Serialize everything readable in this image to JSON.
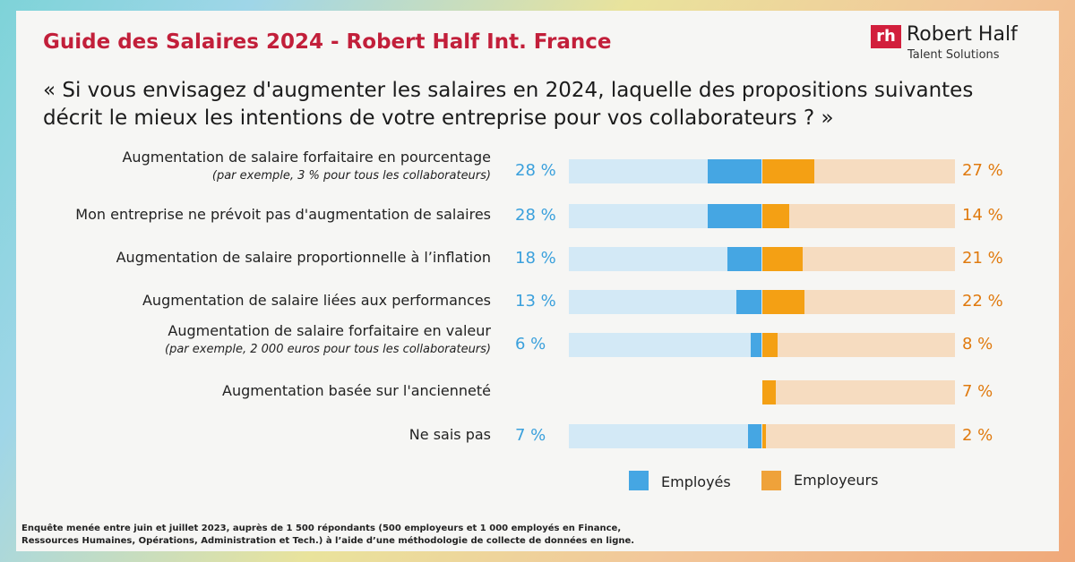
{
  "header": {
    "title": "Guide des Salaires 2024  - Robert Half Int. France",
    "logo_mark": "rh",
    "logo_name": "Robert Half",
    "logo_sub": "Talent Solutions"
  },
  "question": "« Si vous envisagez d'augmenter les salaires en 2024, laquelle des propositions suivantes décrit le mieux les intentions de votre entreprise pour vos collaborateurs ? »",
  "chart_data": {
    "type": "bar",
    "orientation": "horizontal-diverging",
    "categories": [
      "Augmentation de salaire forfaitaire en pourcentage",
      "Mon entreprise ne prévoit pas d'augmentation de salaires",
      "Augmentation de salaire proportionnelle à l’inflation",
      "Augmentation de salaire liées aux performances",
      "Augmentation de salaire forfaitaire en valeur",
      "Augmentation basée sur l'ancienneté",
      "Ne sais pas"
    ],
    "sublabels": [
      "(par exemple, 3 % pour tous les collaborateurs)",
      "",
      "",
      "",
      "(par exemple, 2 000 euros pour tous les collaborateurs)",
      "",
      ""
    ],
    "series": [
      {
        "name": "Employés",
        "color": "#45a6e3",
        "values": [
          28,
          28,
          18,
          13,
          6,
          null,
          7
        ],
        "labels": [
          "28 %",
          "28 %",
          "18 %",
          "13 %",
          "6 %",
          "",
          "7 %"
        ]
      },
      {
        "name": "Employeurs",
        "color": "#f4a014",
        "values": [
          27,
          14,
          21,
          22,
          8,
          7,
          2
        ],
        "labels": [
          "27 %",
          "14 %",
          "21 %",
          "22 %",
          "8 %",
          "7 %",
          "2 %"
        ]
      }
    ],
    "xlim": [
      0,
      100
    ],
    "legend_position": "bottom"
  },
  "footnote": "Enquête menée entre juin et juillet 2023, auprès de 1 500 répondants (500 employeurs et 1 000 employés en Finance, Ressources Humaines, Opérations, Administration et Tech.) à l’aide d’une méthodologie de collecte de données en ligne."
}
